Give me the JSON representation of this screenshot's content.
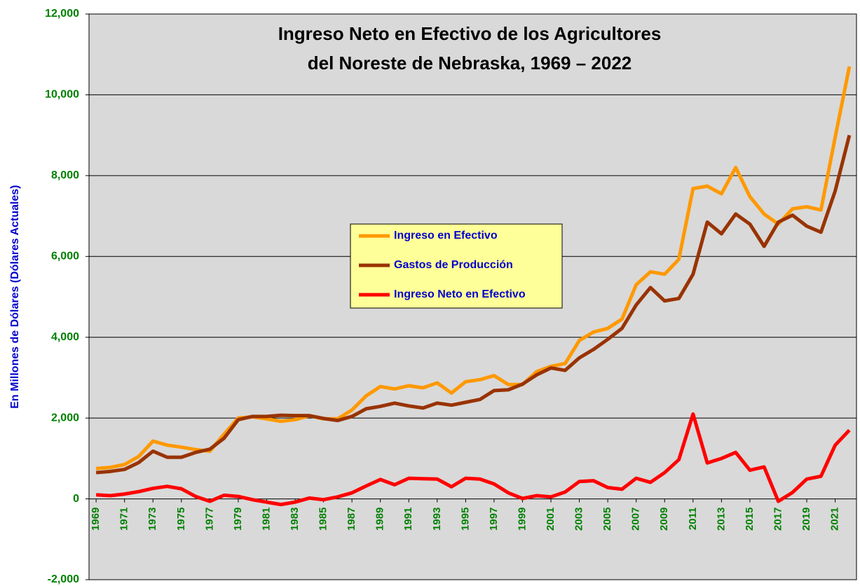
{
  "chart_data": {
    "type": "line",
    "title": [
      "Ingreso Neto en Efectivo de los Agricultores",
      "del Noreste de Nebraska, 1969 – 2022"
    ],
    "y_label": "En Millones de Dólares (Dólares Actuales)",
    "x": [
      1969,
      1970,
      1971,
      1972,
      1973,
      1974,
      1975,
      1976,
      1977,
      1978,
      1979,
      1980,
      1981,
      1982,
      1983,
      1984,
      1985,
      1986,
      1987,
      1988,
      1989,
      1990,
      1991,
      1992,
      1993,
      1994,
      1995,
      1996,
      1997,
      1998,
      1999,
      2000,
      2001,
      2002,
      2003,
      2004,
      2005,
      2006,
      2007,
      2008,
      2009,
      2010,
      2011,
      2012,
      2013,
      2014,
      2015,
      2016,
      2017,
      2018,
      2019,
      2020,
      2021,
      2022
    ],
    "xlim": [
      1968.5,
      2022.5
    ],
    "xticks": [
      1969,
      1971,
      1973,
      1975,
      1977,
      1979,
      1981,
      1983,
      1985,
      1987,
      1989,
      1991,
      1993,
      1995,
      1997,
      1999,
      2001,
      2003,
      2005,
      2007,
      2009,
      2011,
      2013,
      2015,
      2017,
      2019,
      2021
    ],
    "ylim": [
      -2000,
      12000
    ],
    "yticks": [
      {
        "value": -2000,
        "label": "-2,000"
      },
      0,
      {
        "value": 2000,
        "label": "2,000"
      },
      {
        "value": 4000,
        "label": "4,000"
      },
      {
        "value": 6000,
        "label": "6,000"
      },
      {
        "value": 8000,
        "label": "8,000"
      },
      {
        "value": 10000,
        "label": "10,000"
      },
      {
        "value": 12000,
        "label": "12,000"
      }
    ],
    "grid": true,
    "series": [
      {
        "name": "Ingreso en Efectivo",
        "color": "#ff9900",
        "values": [
          750,
          780,
          850,
          1050,
          1430,
          1330,
          1280,
          1220,
          1180,
          1600,
          2000,
          2030,
          1980,
          1920,
          1960,
          2060,
          1980,
          1980,
          2200,
          2550,
          2780,
          2720,
          2800,
          2750,
          2870,
          2620,
          2900,
          2950,
          3050,
          2830,
          2830,
          3150,
          3280,
          3350,
          3920,
          4130,
          4220,
          4450,
          5300,
          5620,
          5560,
          5930,
          7680,
          7740,
          7550,
          8200,
          7480,
          7050,
          6800,
          7180,
          7230,
          7150,
          8950,
          10700
        ]
      },
      {
        "name": "Gastos de Producción",
        "color": "#993300",
        "values": [
          650,
          680,
          730,
          900,
          1180,
          1030,
          1030,
          1150,
          1230,
          1500,
          1960,
          2040,
          2040,
          2070,
          2060,
          2060,
          1990,
          1940,
          2040,
          2230,
          2290,
          2370,
          2300,
          2250,
          2370,
          2320,
          2390,
          2460,
          2680,
          2700,
          2840,
          3070,
          3240,
          3180,
          3490,
          3700,
          3950,
          4220,
          4800,
          5230,
          4900,
          4960,
          5560,
          6850,
          6560,
          7050,
          6800,
          6250,
          6850,
          7020,
          6750,
          6600,
          7620,
          9000
        ]
      },
      {
        "name": "Ingreso Neto en Efectivo",
        "color": "#ff0000",
        "values": [
          100,
          80,
          120,
          180,
          260,
          310,
          250,
          60,
          -60,
          90,
          60,
          -20,
          -80,
          -140,
          -80,
          20,
          -20,
          50,
          150,
          320,
          480,
          350,
          510,
          500,
          490,
          300,
          510,
          490,
          370,
          150,
          10,
          80,
          50,
          170,
          430,
          450,
          280,
          240,
          510,
          410,
          650,
          970,
          2100,
          890,
          1000,
          1150,
          710,
          790,
          -60,
          160,
          490,
          560,
          1330,
          1700
        ]
      }
    ]
  }
}
